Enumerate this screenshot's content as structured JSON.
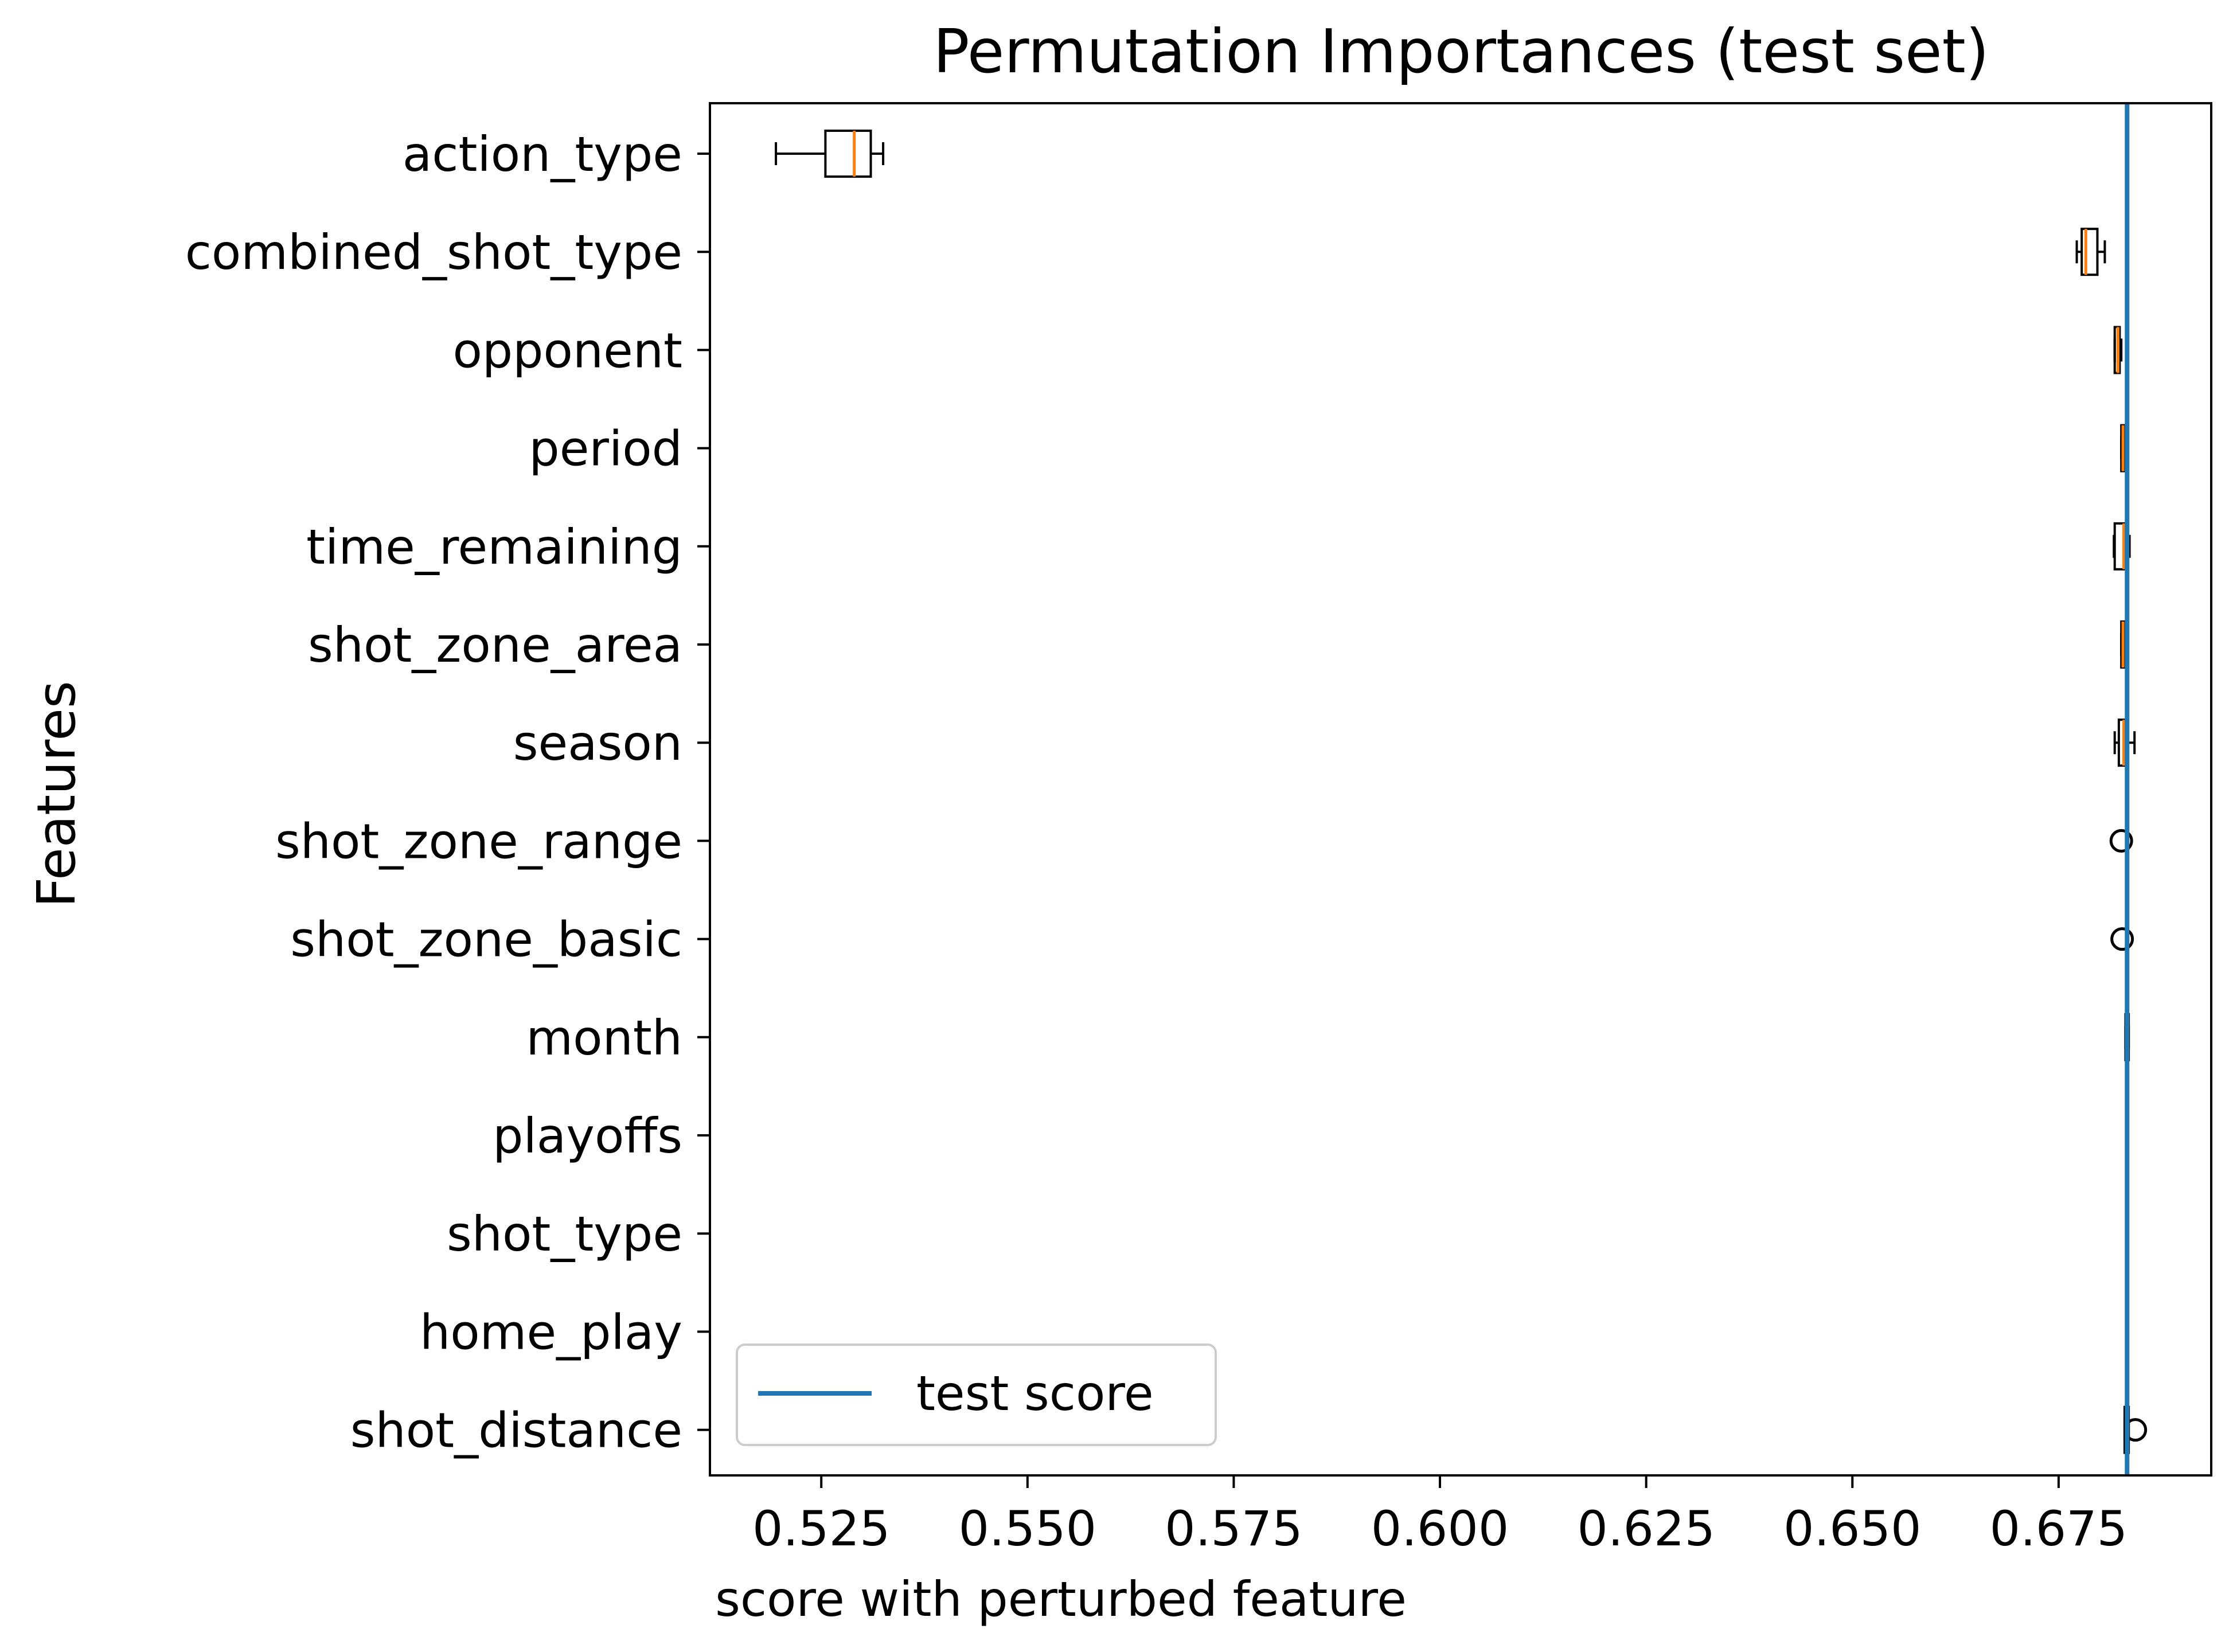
{
  "chart_data": {
    "type": "boxplot",
    "orientation": "horizontal",
    "title": "Permutation Importances (test set)",
    "xlabel": "score with perturbed feature",
    "ylabel": "Features",
    "xlim": [
      0.5115,
      0.6935
    ],
    "xticks": [
      0.525,
      0.55,
      0.575,
      0.6,
      0.625,
      0.65,
      0.675
    ],
    "xtick_labels": [
      "0.525",
      "0.550",
      "0.575",
      "0.600",
      "0.625",
      "0.650",
      "0.675"
    ],
    "categories": [
      "action_type",
      "combined_shot_type",
      "opponent",
      "period",
      "time_remaining",
      "shot_zone_area",
      "season",
      "shot_zone_range",
      "shot_zone_basic",
      "month",
      "playoffs",
      "shot_type",
      "home_play",
      "shot_distance"
    ],
    "boxes": [
      {
        "whislo": 0.5195,
        "q1": 0.5255,
        "med": 0.529,
        "q3": 0.531,
        "whishi": 0.5325,
        "fliers": []
      },
      {
        "whislo": 0.6772,
        "q1": 0.6778,
        "med": 0.6783,
        "q3": 0.6797,
        "whishi": 0.6806,
        "fliers": []
      },
      {
        "whislo": 0.6818,
        "q1": 0.6818,
        "med": 0.6822,
        "q3": 0.6824,
        "whishi": 0.6826,
        "fliers": []
      },
      {
        "whislo": 0.6826,
        "q1": 0.6826,
        "med": 0.6828,
        "q3": 0.6829,
        "whishi": 0.6829,
        "fliers": []
      },
      {
        "whislo": 0.6817,
        "q1": 0.6818,
        "med": 0.6829,
        "q3": 0.6834,
        "whishi": 0.6836,
        "fliers": []
      },
      {
        "whislo": 0.6826,
        "q1": 0.6826,
        "med": 0.6828,
        "q3": 0.6829,
        "whishi": 0.6829,
        "fliers": []
      },
      {
        "whislo": 0.6818,
        "q1": 0.6823,
        "med": 0.6829,
        "q3": 0.6834,
        "whishi": 0.6842,
        "fliers": []
      },
      {
        "whislo": 0.6833,
        "q1": 0.6833,
        "med": 0.6833,
        "q3": 0.6833,
        "whishi": 0.6833,
        "fliers": [
          0.6826
        ]
      },
      {
        "whislo": 0.6833,
        "q1": 0.6833,
        "med": 0.6833,
        "q3": 0.6833,
        "whishi": 0.6833,
        "fliers": [
          0.6827
        ]
      },
      {
        "whislo": 0.6831,
        "q1": 0.6831,
        "med": 0.6833,
        "q3": 0.6835,
        "whishi": 0.6835,
        "fliers": []
      },
      {
        "whislo": 0.6833,
        "q1": 0.6833,
        "med": 0.6833,
        "q3": 0.6833,
        "whishi": 0.6833,
        "fliers": []
      },
      {
        "whislo": 0.6833,
        "q1": 0.6833,
        "med": 0.6833,
        "q3": 0.6833,
        "whishi": 0.6833,
        "fliers": []
      },
      {
        "whislo": 0.6833,
        "q1": 0.6833,
        "med": 0.6833,
        "q3": 0.6833,
        "whishi": 0.6833,
        "fliers": []
      },
      {
        "whislo": 0.683,
        "q1": 0.683,
        "med": 0.6833,
        "q3": 0.6835,
        "whishi": 0.6835,
        "fliers": [
          0.6843
        ]
      }
    ],
    "reference_line": {
      "x": 0.6833,
      "label": "test score",
      "color": "#1f77b4"
    },
    "legend": {
      "entries": [
        "test score"
      ],
      "placement": "lower-left"
    },
    "grid": false
  },
  "colors": {
    "median": "#ff7f0e",
    "reference": "#1f77b4",
    "box": "#000000"
  }
}
